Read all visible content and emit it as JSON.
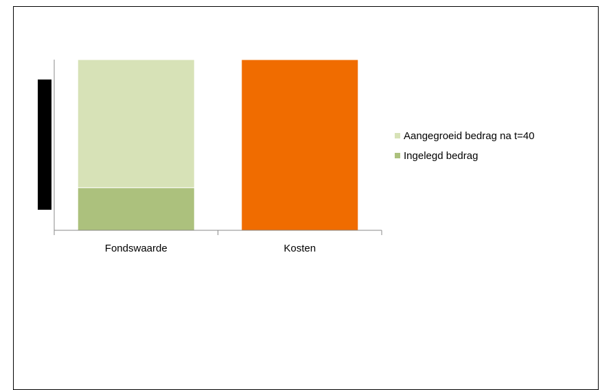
{
  "chart_data": {
    "type": "bar",
    "stacked": true,
    "categories": [
      "Fondswaarde",
      "Kosten"
    ],
    "series": [
      {
        "name": "Ingelegd bedrag",
        "color": "#acc17d",
        "values": [
          0.15,
          0
        ]
      },
      {
        "name": "Aangegroeid bedrag na t=40",
        "color": "#d7e2b7",
        "values": [
          0.45,
          0
        ]
      },
      {
        "color": "#f06c00",
        "values": [
          0,
          0.6
        ]
      }
    ],
    "ylim": [
      0,
      0.6
    ],
    "legend": "right",
    "grid": false
  }
}
